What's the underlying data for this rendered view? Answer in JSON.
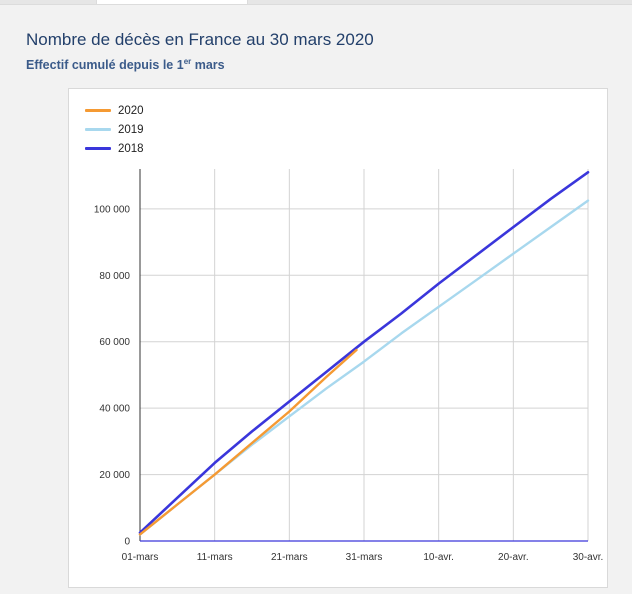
{
  "header": {
    "title": "Nombre de décès en France au 30 mars 2020",
    "subtitle_prefix": "Effectif cumulé depuis le 1",
    "subtitle_sup": "er",
    "subtitle_suffix": " mars"
  },
  "chart_data": {
    "type": "line",
    "title": "Nombre de décès en France au 30 mars 2020",
    "subtitle": "Effectif cumulé depuis le 1er mars",
    "xlabel": "",
    "ylabel": "",
    "x_tick_labels": [
      "01-mars",
      "11-mars",
      "21-mars",
      "31-mars",
      "10-avr.",
      "20-avr.",
      "30-avr."
    ],
    "x_tick_days": [
      0,
      10,
      20,
      30,
      40,
      50,
      60
    ],
    "y_ticks": [
      0,
      20000,
      40000,
      60000,
      80000,
      100000
    ],
    "y_tick_labels": [
      "0",
      "20 000",
      "40 000",
      "60 000",
      "80 000",
      "100 000"
    ],
    "xlim": [
      0,
      60
    ],
    "ylim": [
      0,
      112000
    ],
    "grid": true,
    "legend_position": "top-left",
    "series": [
      {
        "name": "2020",
        "color": "#f59a33",
        "x": [
          0,
          5,
          10,
          15,
          20,
          25,
          29
        ],
        "y": [
          2000,
          11000,
          20000,
          29500,
          39000,
          49500,
          57500
        ]
      },
      {
        "name": "2019",
        "color": "#a8d8ee",
        "x": [
          0,
          5,
          10,
          15,
          20,
          25,
          30,
          35,
          40,
          45,
          50,
          55,
          60
        ],
        "y": [
          2000,
          11000,
          20000,
          29000,
          37500,
          46000,
          54000,
          62500,
          70500,
          78500,
          86500,
          94500,
          102500
        ]
      },
      {
        "name": "2018",
        "color": "#3a36db",
        "x": [
          0,
          5,
          10,
          15,
          20,
          25,
          30,
          35,
          40,
          45,
          50,
          55,
          60
        ],
        "y": [
          2500,
          13000,
          23500,
          33000,
          42000,
          51000,
          60000,
          68500,
          77500,
          86000,
          94500,
          103000,
          111000
        ]
      }
    ]
  }
}
